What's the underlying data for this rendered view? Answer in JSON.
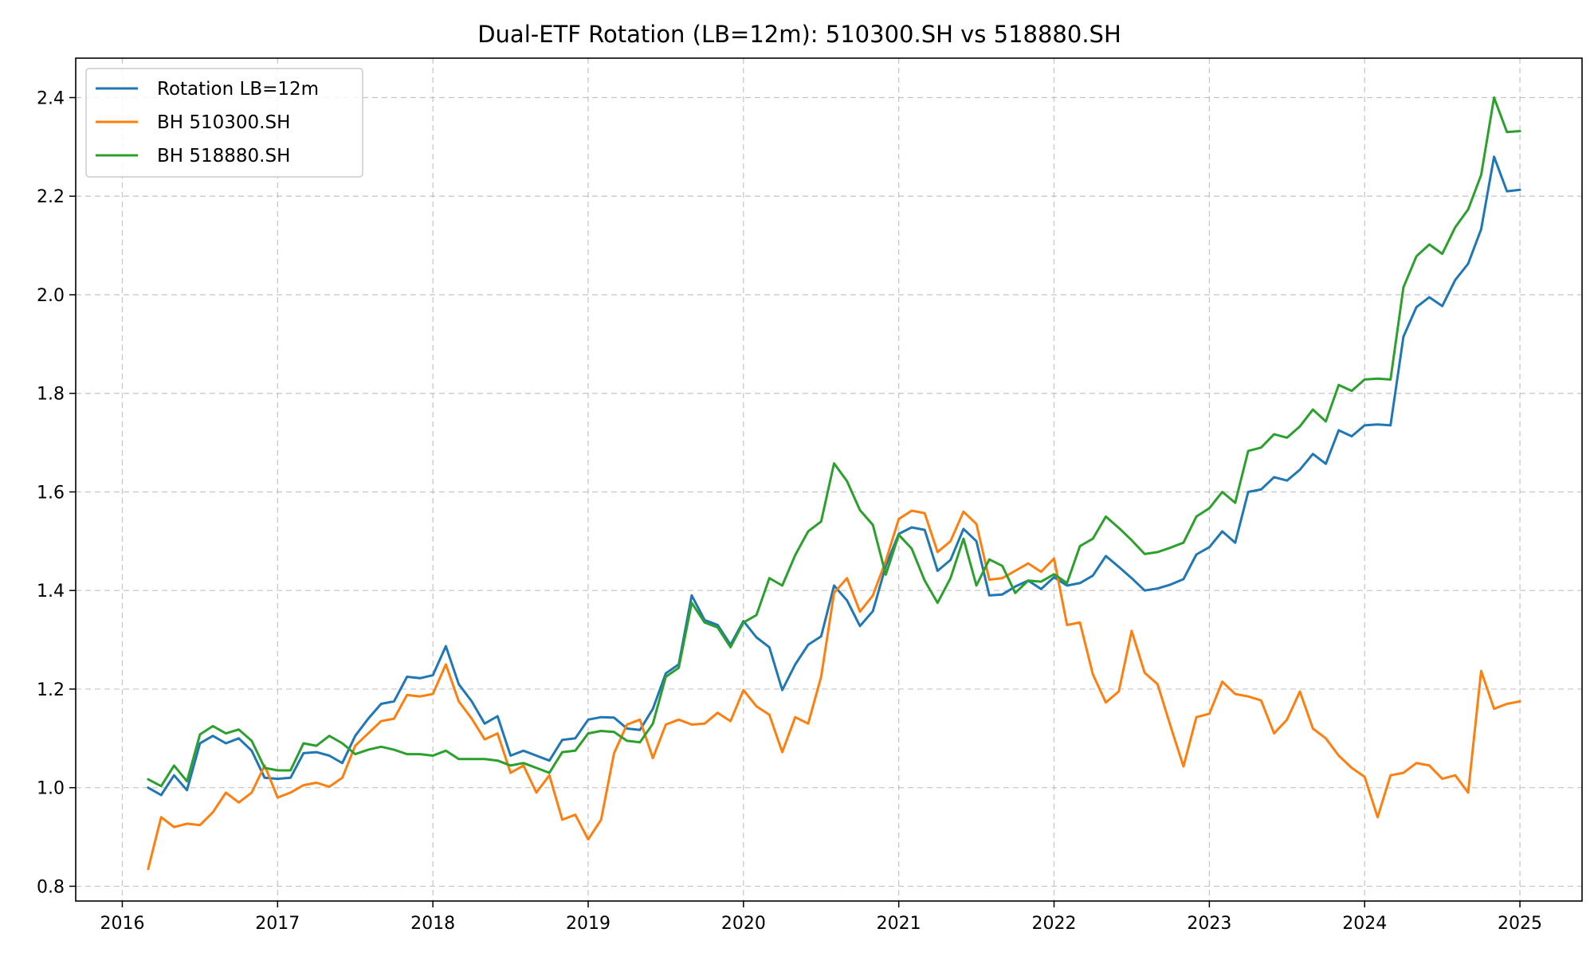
{
  "chart_data": {
    "type": "line",
    "title": "Dual-ETF Rotation (LB=12m): 510300.SH vs 518880.SH",
    "xlabel": "",
    "ylabel": "",
    "x_range": [
      2015.7,
      2025.4
    ],
    "ylim": [
      0.77,
      2.48
    ],
    "x_ticks": [
      2016,
      2017,
      2018,
      2019,
      2020,
      2021,
      2022,
      2023,
      2024,
      2025
    ],
    "x_tick_labels": [
      "2016",
      "2017",
      "2018",
      "2019",
      "2020",
      "2021",
      "2022",
      "2023",
      "2024",
      "2025"
    ],
    "y_ticks": [
      0.8,
      1.0,
      1.2,
      1.4,
      1.6,
      1.8,
      2.0,
      2.2,
      2.4
    ],
    "y_tick_labels": [
      "0.8",
      "1.0",
      "1.2",
      "1.4",
      "1.6",
      "1.8",
      "2.0",
      "2.2",
      "2.4"
    ],
    "grid": true,
    "legend_position": "top-left",
    "start_month": "2016-03",
    "end_month": "2025-01",
    "frequency": "monthly",
    "series": [
      {
        "name": "Rotation LB=12m",
        "color": "#1f77b4",
        "values": [
          1.0,
          0.985,
          1.025,
          0.995,
          1.09,
          1.105,
          1.09,
          1.1,
          1.075,
          1.02,
          1.018,
          1.02,
          1.07,
          1.072,
          1.065,
          1.05,
          1.105,
          1.14,
          1.17,
          1.175,
          1.225,
          1.222,
          1.228,
          1.287,
          1.21,
          1.175,
          1.13,
          1.145,
          1.065,
          1.075,
          1.065,
          1.055,
          1.097,
          1.1,
          1.138,
          1.143,
          1.142,
          1.12,
          1.117,
          1.16,
          1.232,
          1.25,
          1.39,
          1.34,
          1.33,
          1.29,
          1.338,
          1.305,
          1.285,
          1.198,
          1.25,
          1.29,
          1.307,
          1.41,
          1.38,
          1.328,
          1.358,
          1.45,
          1.515,
          1.528,
          1.523,
          1.44,
          1.462,
          1.525,
          1.5,
          1.39,
          1.392,
          1.408,
          1.42,
          1.403,
          1.427,
          1.41,
          1.415,
          1.43,
          1.47,
          1.448,
          1.425,
          1.4,
          1.404,
          1.412,
          1.423,
          1.473,
          1.488,
          1.52,
          1.497,
          1.6,
          1.605,
          1.63,
          1.623,
          1.645,
          1.677,
          1.657,
          1.725,
          1.713,
          1.735,
          1.737,
          1.735,
          1.915,
          1.975,
          1.995,
          1.977,
          2.03,
          2.063,
          2.133,
          2.28,
          2.21,
          2.213
        ]
      },
      {
        "name": "BH 510300.SH",
        "color": "#ff7f0e",
        "values": [
          0.835,
          0.94,
          0.92,
          0.927,
          0.924,
          0.95,
          0.99,
          0.97,
          0.99,
          1.045,
          0.98,
          0.99,
          1.005,
          1.01,
          1.002,
          1.02,
          1.085,
          1.11,
          1.135,
          1.14,
          1.188,
          1.185,
          1.19,
          1.25,
          1.175,
          1.14,
          1.098,
          1.11,
          1.03,
          1.045,
          0.99,
          1.025,
          0.935,
          0.945,
          0.895,
          0.935,
          1.07,
          1.128,
          1.138,
          1.06,
          1.128,
          1.138,
          1.128,
          1.13,
          1.152,
          1.135,
          1.198,
          1.165,
          1.148,
          1.072,
          1.143,
          1.13,
          1.225,
          1.395,
          1.425,
          1.357,
          1.39,
          1.46,
          1.545,
          1.562,
          1.557,
          1.478,
          1.5,
          1.56,
          1.535,
          1.422,
          1.425,
          1.44,
          1.455,
          1.438,
          1.465,
          1.33,
          1.335,
          1.23,
          1.173,
          1.195,
          1.318,
          1.233,
          1.21,
          1.125,
          1.043,
          1.143,
          1.15,
          1.215,
          1.19,
          1.185,
          1.177,
          1.11,
          1.138,
          1.195,
          1.12,
          1.1,
          1.065,
          1.04,
          1.022,
          0.94,
          1.025,
          1.03,
          1.05,
          1.045,
          1.018,
          1.025,
          0.99,
          1.237,
          1.16,
          1.17,
          1.175
        ]
      },
      {
        "name": "BH 518880.SH",
        "color": "#2ca02c",
        "values": [
          1.017,
          1.003,
          1.045,
          1.013,
          1.108,
          1.125,
          1.11,
          1.118,
          1.095,
          1.04,
          1.035,
          1.035,
          1.09,
          1.085,
          1.105,
          1.09,
          1.068,
          1.077,
          1.083,
          1.077,
          1.068,
          1.068,
          1.065,
          1.075,
          1.058,
          1.058,
          1.058,
          1.055,
          1.045,
          1.05,
          1.04,
          1.03,
          1.072,
          1.075,
          1.11,
          1.115,
          1.113,
          1.095,
          1.092,
          1.13,
          1.225,
          1.243,
          1.375,
          1.335,
          1.325,
          1.285,
          1.335,
          1.35,
          1.425,
          1.41,
          1.472,
          1.52,
          1.54,
          1.658,
          1.622,
          1.563,
          1.533,
          1.432,
          1.513,
          1.485,
          1.42,
          1.375,
          1.425,
          1.505,
          1.41,
          1.463,
          1.45,
          1.395,
          1.42,
          1.418,
          1.433,
          1.415,
          1.49,
          1.505,
          1.55,
          1.527,
          1.502,
          1.474,
          1.478,
          1.487,
          1.497,
          1.55,
          1.567,
          1.6,
          1.578,
          1.683,
          1.69,
          1.717,
          1.71,
          1.733,
          1.767,
          1.743,
          1.817,
          1.805,
          1.828,
          1.83,
          1.828,
          2.015,
          2.078,
          2.102,
          2.083,
          2.137,
          2.173,
          2.243,
          2.4,
          2.33,
          2.332
        ]
      }
    ]
  }
}
